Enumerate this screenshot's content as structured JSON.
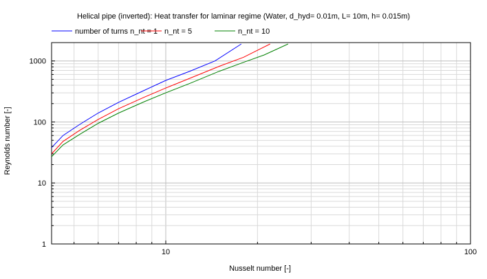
{
  "chart_data": {
    "type": "line",
    "title": "Helical pipe (inverted): Heat transfer for laminar regime (Water, d_hyd= 0.01m, L= 10m, h= 0.015m)",
    "xlabel": "Nusselt number [-]",
    "ylabel": "Reynolds number [-]",
    "xscale": "log",
    "yscale": "log",
    "xlim": [
      4.22,
      100
    ],
    "ylim": [
      1,
      2000
    ],
    "grid": true,
    "legend_position": "top-left",
    "x_tick_labels": [
      {
        "value": 10,
        "label": "10"
      },
      {
        "value": 100,
        "label": "100"
      }
    ],
    "y_tick_labels": [
      {
        "value": 1,
        "label": "1"
      },
      {
        "value": 10,
        "label": "10"
      },
      {
        "value": 100,
        "label": "100"
      },
      {
        "value": 1000,
        "label": "1000"
      }
    ],
    "series": [
      {
        "name": "number of turns n_nt = 1",
        "color": "#0000ff",
        "points": [
          [
            4.22,
            38
          ],
          [
            4.6,
            60
          ],
          [
            5.2,
            90
          ],
          [
            6,
            140
          ],
          [
            7,
            210
          ],
          [
            8.5,
            330
          ],
          [
            10,
            480
          ],
          [
            12,
            680
          ],
          [
            14.5,
            1000
          ],
          [
            17.7,
            1900
          ]
        ]
      },
      {
        "name": "n_nt = 5",
        "color": "#ff0000",
        "points": [
          [
            4.22,
            30
          ],
          [
            4.6,
            48
          ],
          [
            5.2,
            72
          ],
          [
            6,
            110
          ],
          [
            7,
            165
          ],
          [
            8.5,
            255
          ],
          [
            10,
            360
          ],
          [
            12,
            520
          ],
          [
            15,
            820
          ],
          [
            18,
            1150
          ],
          [
            22,
            1900
          ]
        ]
      },
      {
        "name": "n_nt = 10",
        "color": "#008000",
        "points": [
          [
            4.22,
            27
          ],
          [
            4.6,
            42
          ],
          [
            5.2,
            62
          ],
          [
            6,
            95
          ],
          [
            7,
            140
          ],
          [
            8.5,
            215
          ],
          [
            10,
            300
          ],
          [
            12,
            430
          ],
          [
            15,
            680
          ],
          [
            18,
            950
          ],
          [
            21,
            1250
          ],
          [
            25.2,
            1900
          ]
        ]
      }
    ]
  }
}
